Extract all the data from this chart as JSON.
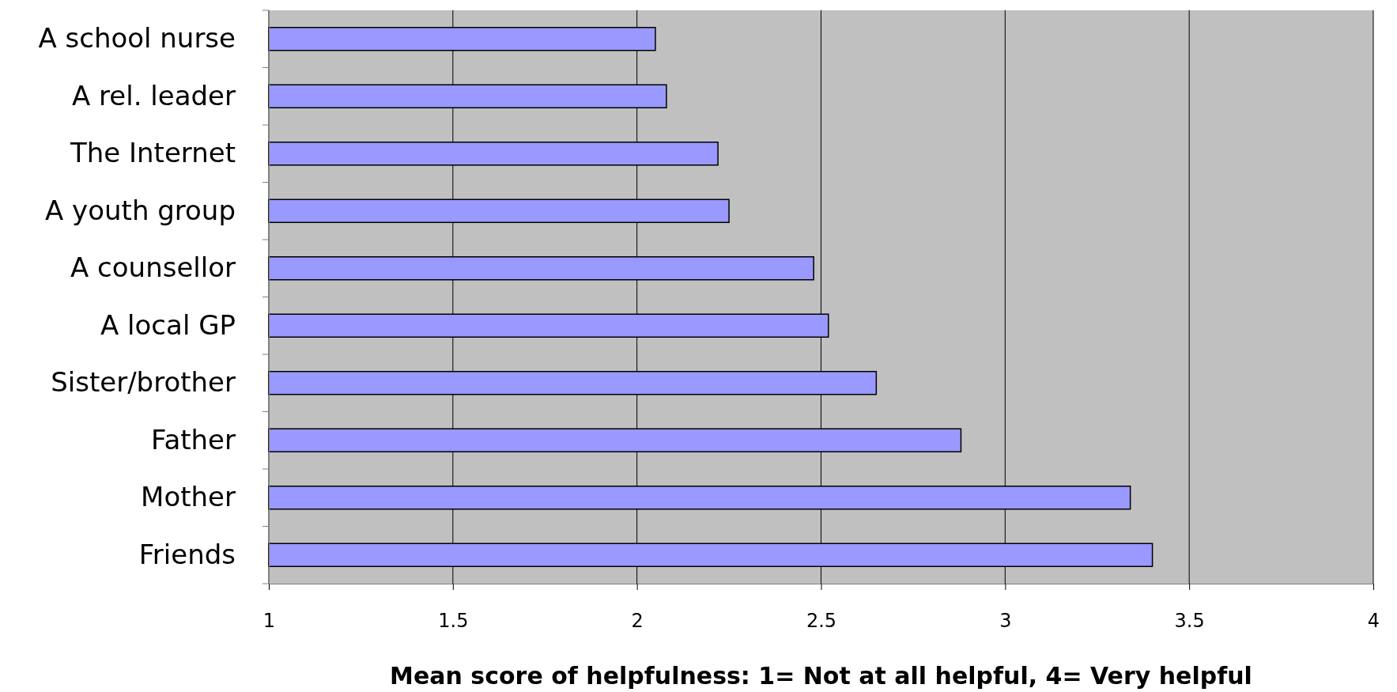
{
  "chart_data": {
    "type": "bar",
    "orientation": "horizontal",
    "xlabel": "Mean score of helpfulness: 1= Not at all helpful, 4= Very helpful",
    "categories": [
      "A school nurse",
      "A rel. leader",
      "The Internet",
      "A youth group",
      "A counsellor",
      "A local GP",
      "Sister/brother",
      "Father",
      "Mother",
      "Friends"
    ],
    "values": [
      2.05,
      2.08,
      2.22,
      2.25,
      2.48,
      2.52,
      2.65,
      2.88,
      3.34,
      3.4
    ],
    "color": "#9999ff",
    "xlim": [
      1,
      4
    ],
    "xticks": [
      1,
      1.5,
      2,
      2.5,
      3,
      3.5,
      4
    ],
    "grid": "x"
  }
}
